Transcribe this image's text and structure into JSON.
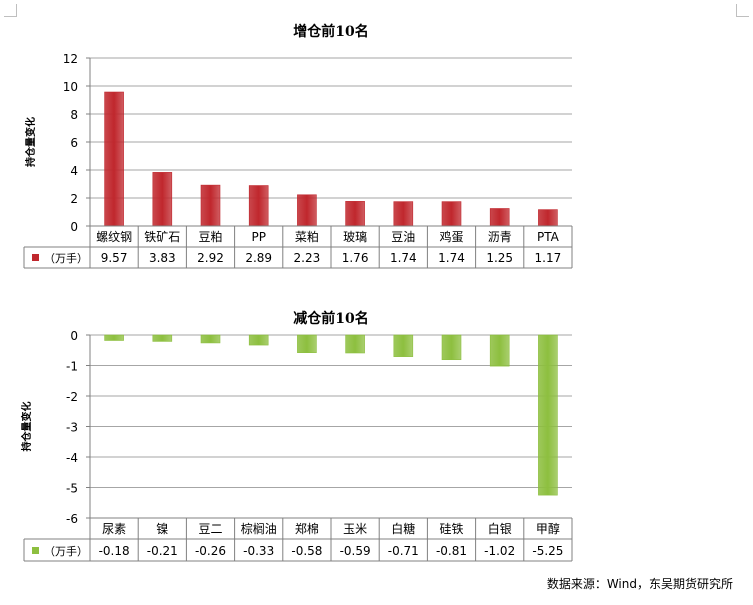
{
  "chart_data": [
    {
      "type": "bar",
      "title": "增仓前10名",
      "ylabel": "持仓量变化",
      "categories": [
        "螺纹钢",
        "铁矿石",
        "豆粕",
        "PP",
        "菜粕",
        "玻璃",
        "豆油",
        "鸡蛋",
        "沥青",
        "PTA"
      ],
      "series": [
        {
          "name": "（万手）",
          "color": "#c0272d",
          "values": [
            9.57,
            3.83,
            2.92,
            2.89,
            2.23,
            1.76,
            1.74,
            1.74,
            1.25,
            1.17
          ],
          "labels": [
            "9.57",
            "3.83",
            "2.92",
            "2.89",
            "2.23",
            "1.76",
            "1.74",
            "1.74",
            "1.25",
            "1.17"
          ]
        }
      ],
      "ylim": [
        0,
        12
      ],
      "yticks": [
        "0",
        "2",
        "4",
        "6",
        "8",
        "10",
        "12"
      ],
      "grid": true,
      "legend": "data-table"
    },
    {
      "type": "bar",
      "title": "减仓前10名",
      "ylabel": "持仓量变化",
      "categories": [
        "尿素",
        "镍",
        "豆二",
        "棕榈油",
        "郑棉",
        "玉米",
        "白糖",
        "硅铁",
        "白银",
        "甲醇"
      ],
      "series": [
        {
          "name": "（万手）",
          "color": "#8dbf3f",
          "values": [
            -0.18,
            -0.21,
            -0.26,
            -0.33,
            -0.58,
            -0.59,
            -0.71,
            -0.81,
            -1.02,
            -5.25
          ],
          "labels": [
            "-0.18",
            "-0.21",
            "-0.26",
            "-0.33",
            "-0.58",
            "-0.59",
            "-0.71",
            "-0.81",
            "-1.02",
            "-5.25"
          ]
        }
      ],
      "ylim": [
        -6,
        0
      ],
      "yticks": [
        "-6",
        "-5",
        "-4",
        "-3",
        "-2",
        "-1",
        "0"
      ],
      "grid": true,
      "legend": "data-table"
    }
  ],
  "source": "数据来源：Wind，东吴期货研究所"
}
